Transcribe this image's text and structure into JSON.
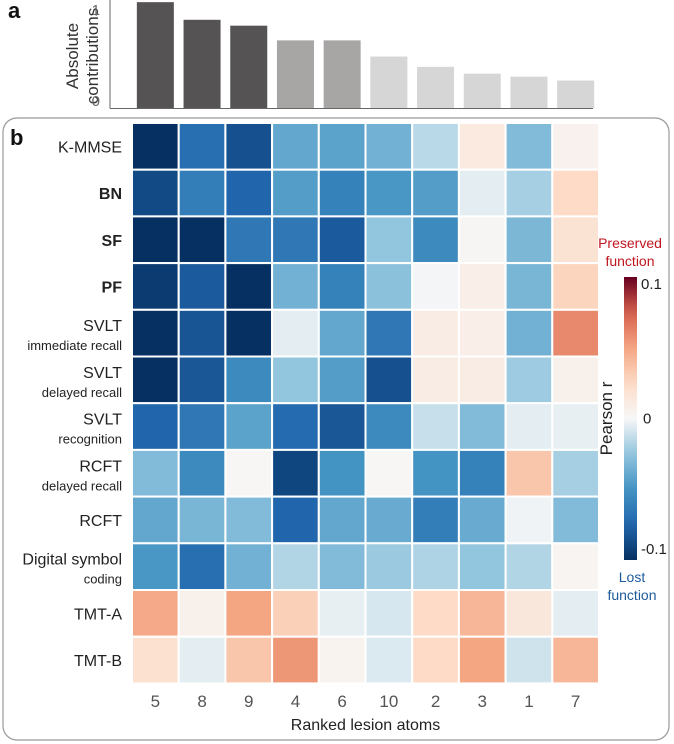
{
  "chart_data": [
    {
      "type": "bar",
      "panel_label": "a",
      "ylabel_lines": [
        "Absolute",
        "contributions"
      ],
      "yticks": [
        "0",
        "1"
      ],
      "ylim": [
        0,
        1.1
      ],
      "categories": [
        "5",
        "8",
        "9",
        "4",
        "6",
        "10",
        "2",
        "3",
        "1",
        "7"
      ],
      "values": [
        1.08,
        0.9,
        0.84,
        0.69,
        0.69,
        0.525,
        0.42,
        0.35,
        0.32,
        0.28
      ],
      "bar_colors": [
        "#555354",
        "#555354",
        "#555354",
        "#a8a5a5",
        "#a8a5a5",
        "#d6d6d6",
        "#d6d6d6",
        "#d6d6d6",
        "#d6d6d6",
        "#d6d6d6"
      ]
    },
    {
      "type": "heatmap",
      "panel_label": "b",
      "xlabel": "Ranked lesion atoms",
      "columns": [
        "5",
        "8",
        "9",
        "4",
        "6",
        "10",
        "2",
        "3",
        "1",
        "7"
      ],
      "rows": [
        {
          "lines": [
            "K-MMSE"
          ],
          "bold": false
        },
        {
          "lines": [
            "BN"
          ],
          "bold": true
        },
        {
          "lines": [
            "SF"
          ],
          "bold": true
        },
        {
          "lines": [
            "PF"
          ],
          "bold": true
        },
        {
          "lines": [
            "SVLT",
            "immediate recall"
          ],
          "bold": false
        },
        {
          "lines": [
            "SVLT",
            "delayed recall"
          ],
          "bold": false
        },
        {
          "lines": [
            "SVLT",
            "recognition"
          ],
          "bold": false
        },
        {
          "lines": [
            "RCFT",
            "delayed recall"
          ],
          "bold": false
        },
        {
          "lines": [
            "RCFT"
          ],
          "bold": false
        },
        {
          "lines": [
            "Digital symbol",
            "coding"
          ],
          "bold": false
        },
        {
          "lines": [
            "TMT-A"
          ],
          "bold": false
        },
        {
          "lines": [
            "TMT-B"
          ],
          "bold": false
        }
      ],
      "values": [
        [
          -0.1,
          -0.07,
          -0.085,
          -0.04,
          -0.042,
          -0.035,
          -0.015,
          0.012,
          -0.03,
          0.005
        ],
        [
          -0.088,
          -0.062,
          -0.075,
          -0.045,
          -0.06,
          -0.048,
          -0.045,
          -0.005,
          -0.02,
          0.025
        ],
        [
          -0.1,
          -0.1,
          -0.065,
          -0.065,
          -0.08,
          -0.025,
          -0.055,
          0.002,
          -0.032,
          0.018
        ],
        [
          -0.095,
          -0.08,
          -0.1,
          -0.035,
          -0.06,
          -0.027,
          -0.001,
          0.008,
          -0.033,
          0.028
        ],
        [
          -0.1,
          -0.083,
          -0.1,
          -0.005,
          -0.04,
          -0.065,
          0.01,
          0.008,
          -0.035,
          0.06
        ],
        [
          -0.1,
          -0.082,
          -0.055,
          -0.025,
          -0.045,
          -0.085,
          0.01,
          0.01,
          -0.022,
          0.006
        ],
        [
          -0.075,
          -0.065,
          -0.042,
          -0.072,
          -0.082,
          -0.055,
          -0.012,
          -0.03,
          -0.005,
          -0.004
        ],
        [
          -0.03,
          -0.055,
          0.001,
          -0.09,
          -0.05,
          0.001,
          -0.05,
          -0.06,
          0.035,
          -0.02
        ],
        [
          -0.04,
          -0.033,
          -0.03,
          -0.075,
          -0.04,
          -0.038,
          -0.062,
          -0.038,
          -0.002,
          -0.03
        ],
        [
          -0.048,
          -0.07,
          -0.035,
          -0.017,
          -0.03,
          -0.023,
          -0.018,
          -0.025,
          -0.017,
          0.003
        ],
        [
          0.048,
          0.006,
          0.05,
          0.03,
          -0.004,
          -0.008,
          0.025,
          0.042,
          0.014,
          -0.005
        ],
        [
          0.02,
          -0.005,
          0.035,
          0.055,
          0.004,
          -0.007,
          0.025,
          0.05,
          -0.01,
          0.042
        ]
      ],
      "vlim": [
        -0.1,
        0.1
      ],
      "colormap": "RdBu_r",
      "colorbar": {
        "label": "Pearson r",
        "ticks": [
          "0.1",
          "0",
          "-0.1"
        ],
        "top_annotation_lines": [
          "Preserved",
          "function"
        ],
        "bottom_annotation_lines": [
          "Lost",
          "function"
        ],
        "top_color": "#c0161e",
        "bottom_color": "#1f5b9c"
      }
    }
  ]
}
